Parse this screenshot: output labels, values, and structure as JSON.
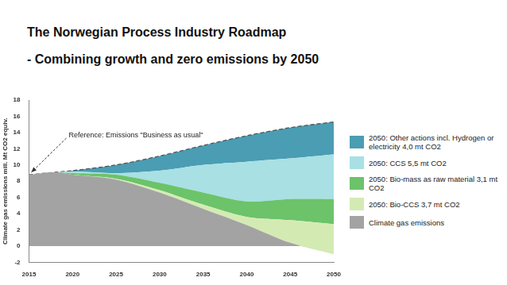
{
  "chart_data": {
    "type": "area",
    "title": "The Norwegian Process Industry Roadmap",
    "subtitle": "- Combining growth and zero emissions by 2050",
    "y_label": "Climate gas emissions mill. Mt CO2 equiv.",
    "annotation": "Reference: Emissions \"Business as usual\"",
    "x": [
      2015,
      2018,
      2020,
      2025,
      2030,
      2035,
      2040,
      2045,
      2050
    ],
    "series": [
      {
        "name": "Climate gas emissions",
        "color": "#a3a3a3",
        "values": [
          8.8,
          9.1,
          8.8,
          8.2,
          6.6,
          4.6,
          2.6,
          0.4,
          -1.0
        ]
      },
      {
        "name": "2050: Bio-CCS 3,7 mt CO2",
        "color": "#d3ebb3",
        "values": [
          0,
          0,
          0,
          0.1,
          0.3,
          0.5,
          1.0,
          2.8,
          3.7
        ]
      },
      {
        "name": "2050: Bio-mass as raw material 3,1 mt CO2",
        "color": "#6cc36a",
        "values": [
          0,
          0,
          0.2,
          0.5,
          0.9,
          1.5,
          1.9,
          2.6,
          3.1
        ]
      },
      {
        "name": "2050: CCS 5,5 mt CO2",
        "color": "#a8e0e4",
        "values": [
          0,
          0,
          0.2,
          0.2,
          1.5,
          3.4,
          4.9,
          5.0,
          5.5
        ]
      },
      {
        "name": "2050: Other actions incl. Hydrogen or electricity 4,0 mt CO2",
        "color": "#4a9db3",
        "line_style": "dashed",
        "values": [
          0,
          0,
          0.1,
          1.0,
          1.8,
          2.4,
          3.2,
          3.8,
          4.0
        ]
      }
    ],
    "xlim": [
      2015,
      2050
    ],
    "xticks": [
      2015,
      2020,
      2025,
      2030,
      2035,
      2040,
      2045,
      2050
    ],
    "ylim": [
      -2,
      18
    ],
    "yticks": [
      -2,
      0,
      2,
      4,
      6,
      8,
      10,
      12,
      14,
      16,
      18
    ],
    "stacked": true,
    "grid": false,
    "legend": "right"
  }
}
